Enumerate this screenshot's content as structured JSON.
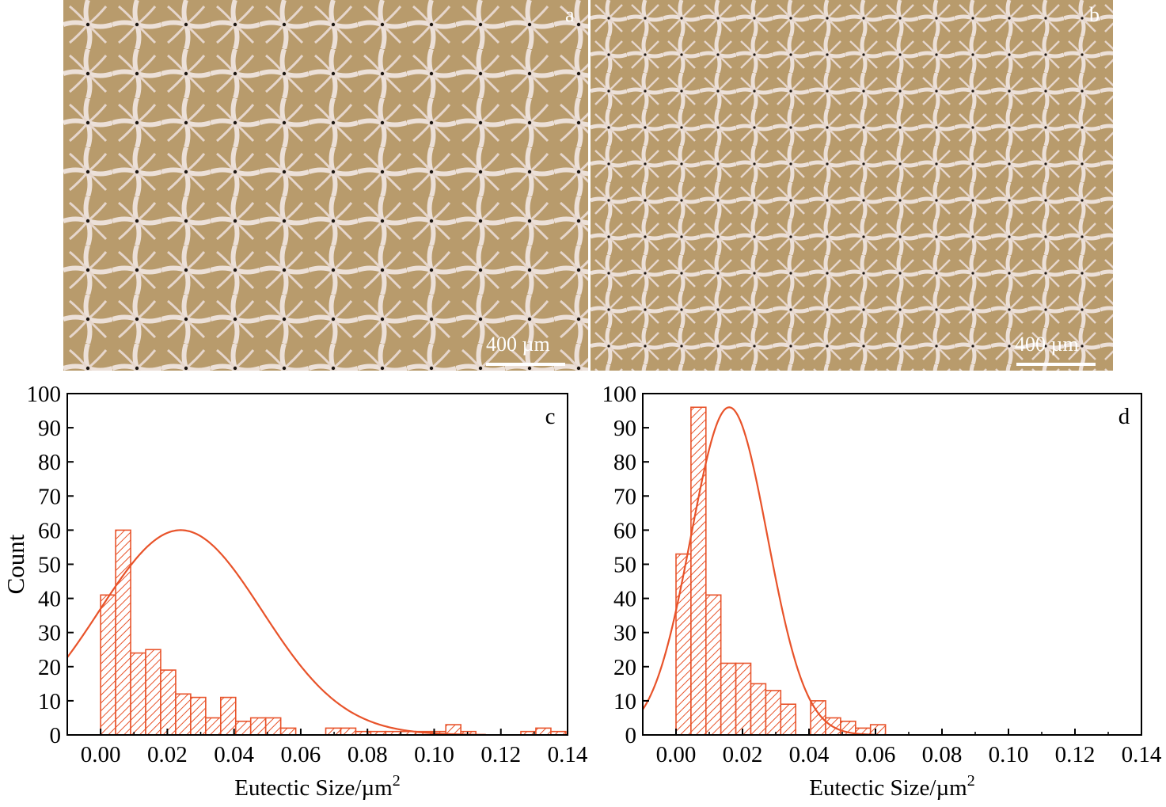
{
  "micrographs": [
    {
      "id": "a",
      "label": "a",
      "scale_bar": "400 µm"
    },
    {
      "id": "b",
      "label": "b",
      "scale_bar": "400 µm"
    }
  ],
  "colors": {
    "bar": "#e8532a",
    "curve": "#e8532a",
    "matrix": "#b89b6c",
    "eutectic": "#ece0d8",
    "pore": "#1a1410"
  },
  "chart_data": [
    {
      "type": "bar",
      "panel": "c",
      "xlabel": "Eutectic Size/µm",
      "xlabel_sup": "2",
      "ylabel": "Count",
      "xlim": [
        -0.01,
        0.14
      ],
      "ylim": [
        0,
        100
      ],
      "xticks": [
        "0.00",
        "0.02",
        "0.04",
        "0.06",
        "0.08",
        "0.10",
        "0.12",
        "0.14"
      ],
      "yticks": [
        "0",
        "10",
        "20",
        "30",
        "40",
        "50",
        "60",
        "70",
        "80",
        "90",
        "100"
      ],
      "bin_width": 0.0045,
      "bins": [
        0.0,
        0.0045,
        0.009,
        0.0135,
        0.018,
        0.0225,
        0.027,
        0.0315,
        0.036,
        0.0405,
        0.045,
        0.0495,
        0.054,
        0.0585,
        0.063,
        0.0675,
        0.072,
        0.0765,
        0.081,
        0.0855,
        0.09,
        0.0945,
        0.099,
        0.1035,
        0.108,
        0.1125,
        0.117,
        0.1215,
        0.126,
        0.1305,
        0.135
      ],
      "values": [
        41,
        60,
        24,
        25,
        19,
        12,
        11,
        5,
        11,
        4,
        5,
        5,
        2,
        0,
        0,
        2,
        2,
        1,
        1,
        1,
        1,
        1,
        1,
        3,
        1,
        0,
        0,
        0,
        1,
        2,
        1
      ],
      "fit": {
        "type": "gaussian",
        "peak": 60,
        "mean": 0.024,
        "sigma": 0.0244
      }
    },
    {
      "type": "bar",
      "panel": "d",
      "xlabel": "Eutectic Size/µm",
      "xlabel_sup": "2",
      "ylabel": "",
      "xlim": [
        -0.01,
        0.14
      ],
      "ylim": [
        0,
        100
      ],
      "xticks": [
        "0.00",
        "0.02",
        "0.04",
        "0.06",
        "0.08",
        "0.10",
        "0.12",
        "0.14"
      ],
      "yticks": [
        "0",
        "10",
        "20",
        "30",
        "40",
        "50",
        "60",
        "70",
        "80",
        "90",
        "100"
      ],
      "bin_width": 0.0045,
      "bins": [
        0.0,
        0.0045,
        0.009,
        0.0135,
        0.018,
        0.0225,
        0.027,
        0.0315,
        0.036,
        0.0405,
        0.045,
        0.0495,
        0.054,
        0.0585,
        0.063,
        0.0675
      ],
      "values": [
        53,
        96,
        41,
        21,
        21,
        15,
        13,
        9,
        0,
        10,
        5,
        4,
        2,
        3,
        0,
        0
      ],
      "fit": {
        "type": "gaussian",
        "peak": 96,
        "mean": 0.016,
        "sigma": 0.0115
      }
    }
  ]
}
